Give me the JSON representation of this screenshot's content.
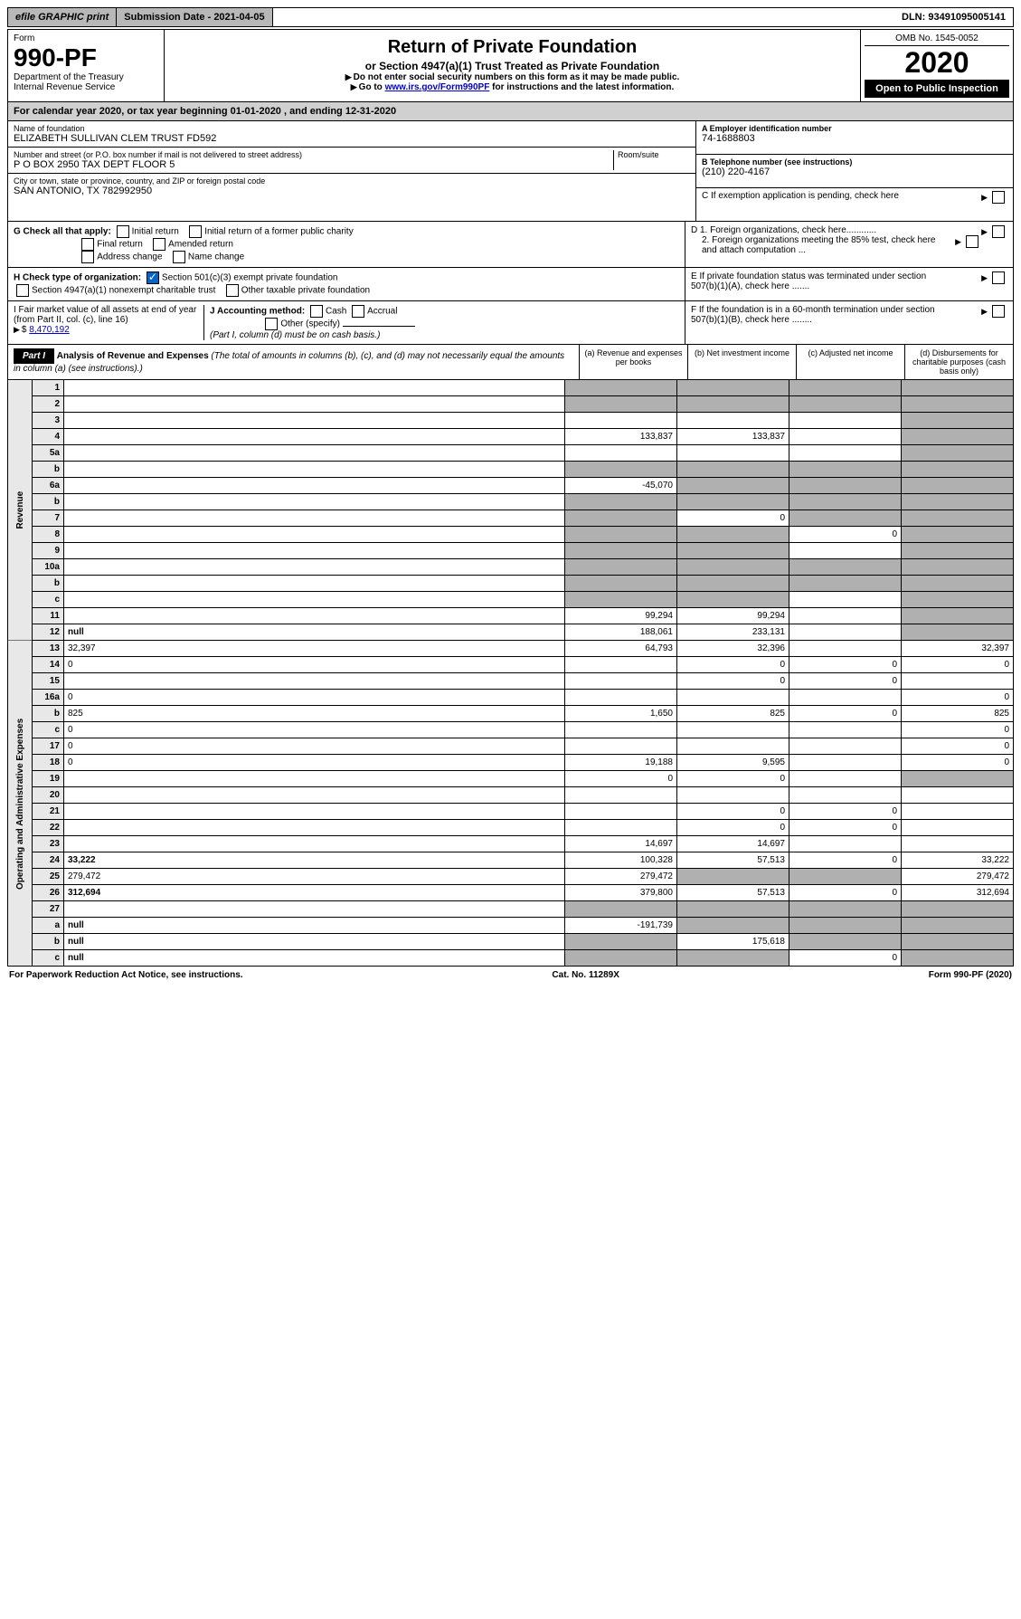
{
  "topbar": {
    "efile": "efile GRAPHIC print",
    "submission": "Submission Date - 2021-04-05",
    "dln": "DLN: 93491095005141"
  },
  "header": {
    "form_word": "Form",
    "form_num": "990-PF",
    "dept": "Department of the Treasury",
    "irs": "Internal Revenue Service",
    "title": "Return of Private Foundation",
    "subtitle": "or Section 4947(a)(1) Trust Treated as Private Foundation",
    "instr1": "Do not enter social security numbers on this form as it may be made public.",
    "instr2_pre": "Go to ",
    "instr2_link": "www.irs.gov/Form990PF",
    "instr2_post": " for instructions and the latest information.",
    "omb": "OMB No. 1545-0052",
    "year": "2020",
    "open": "Open to Public Inspection"
  },
  "cal": {
    "text_pre": "For calendar year 2020, or tax year beginning ",
    "begin": "01-01-2020",
    "text_mid": " , and ending ",
    "end": "12-31-2020"
  },
  "info": {
    "name_label": "Name of foundation",
    "name": "ELIZABETH SULLIVAN CLEM TRUST FD592",
    "addr_label": "Number and street (or P.O. box number if mail is not delivered to street address)",
    "addr": "P O BOX 2950 TAX DEPT FLOOR 5",
    "room_label": "Room/suite",
    "city_label": "City or town, state or province, country, and ZIP or foreign postal code",
    "city": "SAN ANTONIO, TX  782992950",
    "ein_label": "A Employer identification number",
    "ein": "74-1688803",
    "phone_label": "B Telephone number (see instructions)",
    "phone": "(210) 220-4167",
    "c_label": "C If exemption application is pending, check here"
  },
  "checks": {
    "g_label": "G Check all that apply:",
    "g_items": [
      "Initial return",
      "Initial return of a former public charity",
      "Final return",
      "Amended return",
      "Address change",
      "Name change"
    ],
    "h_label": "H Check type of organization:",
    "h_items": [
      "Section 501(c)(3) exempt private foundation",
      "Section 4947(a)(1) nonexempt charitable trust",
      "Other taxable private foundation"
    ],
    "i_label": "I Fair market value of all assets at end of year (from Part II, col. (c), line 16)",
    "i_arrow": "$",
    "i_val": "8,470,192",
    "j_label": "J Accounting method:",
    "j_items": [
      "Cash",
      "Accrual",
      "Other (specify)"
    ],
    "j_note": "(Part I, column (d) must be on cash basis.)",
    "d_label": "D 1. Foreign organizations, check here............",
    "d2_label": "2. Foreign organizations meeting the 85% test, check here and attach computation ...",
    "e_label": "E  If private foundation status was terminated under section 507(b)(1)(A), check here .......",
    "f_label": "F  If the foundation is in a 60-month termination under section 507(b)(1)(B), check here ........"
  },
  "part1": {
    "label": "Part I",
    "title": "Analysis of Revenue and Expenses",
    "note": "(The total of amounts in columns (b), (c), and (d) may not necessarily equal the amounts in column (a) (see instructions).)",
    "cols": {
      "a": "(a)  Revenue and expenses per books",
      "b": "(b)  Net investment income",
      "c": "(c)  Adjusted net income",
      "d": "(d)  Disbursements for charitable purposes (cash basis only)"
    }
  },
  "sections": {
    "revenue": "Revenue",
    "expenses": "Operating and Administrative Expenses"
  },
  "rows": [
    {
      "n": "1",
      "d": null,
      "a": "",
      "b": null,
      "c": null,
      "sa": true,
      "sb": true,
      "sc": true,
      "sd": true
    },
    {
      "n": "2",
      "d": null,
      "a": null,
      "b": null,
      "c": null,
      "sa": true,
      "sb": true,
      "sc": true,
      "sd": true
    },
    {
      "n": "3",
      "d": null,
      "a": "",
      "b": "",
      "c": "",
      "sd": true
    },
    {
      "n": "4",
      "d": null,
      "a": "133,837",
      "b": "133,837",
      "c": "",
      "sd": true
    },
    {
      "n": "5a",
      "d": null,
      "a": "",
      "b": "",
      "c": "",
      "sd": true
    },
    {
      "n": "b",
      "d": null,
      "a": null,
      "b": null,
      "c": null,
      "sa": true,
      "sb": true,
      "sc": true,
      "sd": true
    },
    {
      "n": "6a",
      "d": null,
      "a": "-45,070",
      "b": null,
      "c": null,
      "sb": true,
      "sc": true,
      "sd": true
    },
    {
      "n": "b",
      "d": null,
      "a": null,
      "b": null,
      "c": null,
      "sa": true,
      "sb": true,
      "sc": true,
      "sd": true
    },
    {
      "n": "7",
      "d": null,
      "a": null,
      "b": "0",
      "c": null,
      "sa": true,
      "sc": true,
      "sd": true
    },
    {
      "n": "8",
      "d": null,
      "a": null,
      "b": null,
      "c": "0",
      "sa": true,
      "sb": true,
      "sd": true
    },
    {
      "n": "9",
      "d": null,
      "a": null,
      "b": null,
      "c": "",
      "sa": true,
      "sb": true,
      "sd": true
    },
    {
      "n": "10a",
      "d": null,
      "a": null,
      "b": null,
      "c": null,
      "sa": true,
      "sb": true,
      "sc": true,
      "sd": true
    },
    {
      "n": "b",
      "d": null,
      "a": null,
      "b": null,
      "c": null,
      "sa": true,
      "sb": true,
      "sc": true,
      "sd": true
    },
    {
      "n": "c",
      "d": null,
      "a": null,
      "b": null,
      "c": "",
      "sa": true,
      "sb": true,
      "sd": true
    },
    {
      "n": "11",
      "d": null,
      "a": "99,294",
      "b": "99,294",
      "c": "",
      "sd": true
    },
    {
      "n": "12",
      "d": null,
      "a": "188,061",
      "b": "233,131",
      "c": "",
      "bold": true,
      "sd": true
    }
  ],
  "exp_rows": [
    {
      "n": "13",
      "d": "32,397",
      "a": "64,793",
      "b": "32,396",
      "c": ""
    },
    {
      "n": "14",
      "d": "0",
      "a": "",
      "b": "0",
      "c": "0"
    },
    {
      "n": "15",
      "d": "",
      "a": "",
      "b": "0",
      "c": "0"
    },
    {
      "n": "16a",
      "d": "0",
      "a": "",
      "b": "",
      "c": ""
    },
    {
      "n": "b",
      "d": "825",
      "a": "1,650",
      "b": "825",
      "c": "0"
    },
    {
      "n": "c",
      "d": "0",
      "a": "",
      "b": "",
      "c": ""
    },
    {
      "n": "17",
      "d": "0",
      "a": "",
      "b": "",
      "c": ""
    },
    {
      "n": "18",
      "d": "0",
      "a": "19,188",
      "b": "9,595",
      "c": ""
    },
    {
      "n": "19",
      "d": null,
      "a": "0",
      "b": "0",
      "c": "",
      "sd": true
    },
    {
      "n": "20",
      "d": "",
      "a": "",
      "b": "",
      "c": ""
    },
    {
      "n": "21",
      "d": "",
      "a": "",
      "b": "0",
      "c": "0"
    },
    {
      "n": "22",
      "d": "",
      "a": "",
      "b": "0",
      "c": "0"
    },
    {
      "n": "23",
      "d": "",
      "a": "14,697",
      "b": "14,697",
      "c": ""
    },
    {
      "n": "24",
      "d": "33,222",
      "a": "100,328",
      "b": "57,513",
      "c": "0",
      "bold": true
    },
    {
      "n": "25",
      "d": "279,472",
      "a": "279,472",
      "b": null,
      "c": null,
      "sb": true,
      "sc": true
    },
    {
      "n": "26",
      "d": "312,694",
      "a": "379,800",
      "b": "57,513",
      "c": "0",
      "bold": true
    },
    {
      "n": "27",
      "d": null,
      "a": null,
      "b": null,
      "c": null,
      "sa": true,
      "sb": true,
      "sc": true,
      "sd": true
    },
    {
      "n": "a",
      "d": null,
      "a": "-191,739",
      "b": null,
      "c": null,
      "bold": true,
      "sb": true,
      "sc": true,
      "sd": true
    },
    {
      "n": "b",
      "d": null,
      "a": null,
      "b": "175,618",
      "c": null,
      "bold": true,
      "sa": true,
      "sc": true,
      "sd": true
    },
    {
      "n": "c",
      "d": null,
      "a": null,
      "b": null,
      "c": "0",
      "bold": true,
      "sa": true,
      "sb": true,
      "sd": true
    }
  ],
  "footer": {
    "left": "For Paperwork Reduction Act Notice, see instructions.",
    "mid": "Cat. No. 11289X",
    "right": "Form 990-PF (2020)"
  }
}
